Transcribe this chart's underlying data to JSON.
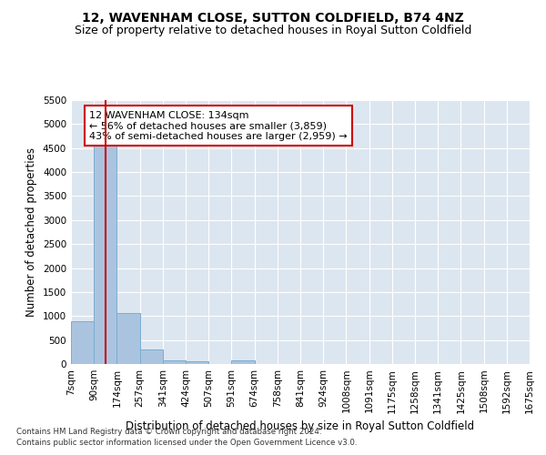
{
  "title1": "12, WAVENHAM CLOSE, SUTTON COLDFIELD, B74 4NZ",
  "title2": "Size of property relative to detached houses in Royal Sutton Coldfield",
  "xlabel": "Distribution of detached houses by size in Royal Sutton Coldfield",
  "ylabel": "Number of detached properties",
  "footnote1": "Contains HM Land Registry data © Crown copyright and database right 2024.",
  "footnote2": "Contains public sector information licensed under the Open Government Licence v3.0.",
  "bin_labels": [
    "7sqm",
    "90sqm",
    "174sqm",
    "257sqm",
    "341sqm",
    "424sqm",
    "507sqm",
    "591sqm",
    "674sqm",
    "758sqm",
    "841sqm",
    "924sqm",
    "1008sqm",
    "1091sqm",
    "1175sqm",
    "1258sqm",
    "1341sqm",
    "1425sqm",
    "1508sqm",
    "1592sqm",
    "1675sqm"
  ],
  "bin_edges": [
    7,
    90,
    174,
    257,
    341,
    424,
    507,
    591,
    674,
    758,
    841,
    924,
    1008,
    1091,
    1175,
    1258,
    1341,
    1425,
    1508,
    1592,
    1675
  ],
  "bar_heights": [
    900,
    4560,
    1060,
    295,
    75,
    65,
    0,
    75,
    0,
    0,
    0,
    0,
    0,
    0,
    0,
    0,
    0,
    0,
    0,
    0
  ],
  "bar_color": "#aac4e0",
  "bar_edge_color": "#7aadd0",
  "property_size": 134,
  "vline_color": "#cc0000",
  "annotation_text": "12 WAVENHAM CLOSE: 134sqm\n← 56% of detached houses are smaller (3,859)\n43% of semi-detached houses are larger (2,959) →",
  "annotation_box_color": "#ffffff",
  "annotation_box_edge": "#cc0000",
  "ylim": [
    0,
    5500
  ],
  "yticks": [
    0,
    500,
    1000,
    1500,
    2000,
    2500,
    3000,
    3500,
    4000,
    4500,
    5000,
    5500
  ],
  "plot_bg_color": "#dce6f0",
  "title1_fontsize": 10,
  "title2_fontsize": 9,
  "xlabel_fontsize": 8.5,
  "ylabel_fontsize": 8.5,
  "tick_fontsize": 7.5,
  "annot_fontsize": 8
}
